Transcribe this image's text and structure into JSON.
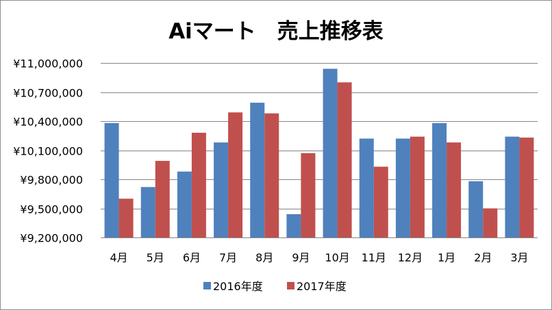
{
  "chart_data": {
    "type": "bar",
    "title": "Aiマート　売上推移表",
    "xlabel": "",
    "ylabel": "",
    "categories": [
      "4月",
      "5月",
      "6月",
      "7月",
      "8月",
      "9月",
      "10月",
      "11月",
      "12月",
      "1月",
      "2月",
      "3月"
    ],
    "series": [
      {
        "name": "2016年度",
        "color": "#4f81bd",
        "values": [
          10380000,
          9720000,
          9880000,
          10180000,
          10590000,
          9440000,
          10940000,
          10220000,
          10220000,
          10380000,
          9780000,
          10240000
        ]
      },
      {
        "name": "2017年度",
        "color": "#c0504d",
        "values": [
          9600000,
          9990000,
          10280000,
          10490000,
          10480000,
          10070000,
          10800000,
          9930000,
          10240000,
          10180000,
          9500000,
          10230000
        ]
      }
    ],
    "ylim": [
      9200000,
      11000000
    ],
    "yticks": [
      9200000,
      9500000,
      9800000,
      10100000,
      10400000,
      10700000,
      11000000
    ],
    "ytick_labels": [
      "¥9,200,000",
      "¥9,500,000",
      "¥9,800,000",
      "¥10,100,000",
      "¥10,400,000",
      "¥10,700,000",
      "¥11,000,000"
    ],
    "grid": true,
    "legend_position": "bottom"
  }
}
